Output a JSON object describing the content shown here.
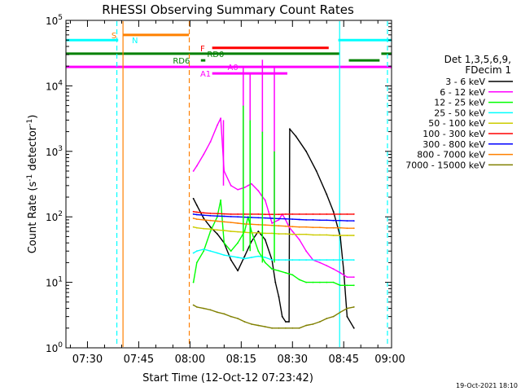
{
  "chart_data": {
    "type": "line",
    "title": "RHESSI Observing Summary Count Rates",
    "xlabel": "Start Time (12-Oct-12 07:23:42)",
    "ylabel_main": "Count Rate (s",
    "ylabel_sup": "-1",
    "ylabel_end": " detector",
    "ylabel_sup2": "-1",
    "ylabel_close": ")",
    "yscale": "log",
    "xlim": [
      23.7,
      119.0
    ],
    "ylim": [
      1,
      100000
    ],
    "x_ticks": [
      {
        "x": 30,
        "label": "07:30"
      },
      {
        "x": 45,
        "label": "07:45"
      },
      {
        "x": 60,
        "label": "08:00"
      },
      {
        "x": 75,
        "label": "08:15"
      },
      {
        "x": 90,
        "label": "08:30"
      },
      {
        "x": 105,
        "label": "08:45"
      },
      {
        "x": 120,
        "label": "09:00"
      }
    ],
    "y_ticks": [
      {
        "y": 1,
        "base": "10",
        "exp": "0"
      },
      {
        "y": 10,
        "base": "10",
        "exp": "1"
      },
      {
        "y": 100,
        "base": "10",
        "exp": "2"
      },
      {
        "y": 1000,
        "base": "10",
        "exp": "3"
      },
      {
        "y": 10000,
        "base": "10",
        "exp": "4"
      },
      {
        "y": 100000,
        "base": "10",
        "exp": "5"
      }
    ],
    "legend": {
      "header": "Det 1,3,5,6,9,",
      "subheader": "FDecim 1",
      "placement": "right"
    },
    "series": [
      {
        "name": "3 - 6 keV",
        "color": "#000000",
        "points": [
          [
            61,
            190
          ],
          [
            62,
            150
          ],
          [
            64,
            95
          ],
          [
            66,
            70
          ],
          [
            68,
            55
          ],
          [
            70,
            40
          ],
          [
            72,
            22
          ],
          [
            74,
            15
          ],
          [
            76,
            25
          ],
          [
            78,
            42
          ],
          [
            80,
            60
          ],
          [
            82,
            45
          ],
          [
            84,
            22
          ],
          [
            85,
            10
          ],
          [
            86,
            6
          ],
          [
            87,
            3
          ],
          [
            88,
            2.5
          ],
          [
            89,
            2.5
          ],
          [
            89.2,
            2200
          ],
          [
            91,
            1700
          ],
          [
            94,
            1000
          ],
          [
            97,
            500
          ],
          [
            100,
            220
          ],
          [
            102,
            120
          ],
          [
            104,
            50
          ],
          [
            105,
            15
          ],
          [
            106,
            3
          ],
          [
            108,
            2
          ]
        ]
      },
      {
        "name": "6 - 12 keV",
        "color": "#ff00ff",
        "points": [
          [
            61,
            500
          ],
          [
            62,
            600
          ],
          [
            64,
            900
          ],
          [
            66,
            1400
          ],
          [
            68,
            2500
          ],
          [
            69,
            3200
          ],
          [
            70,
            500
          ],
          [
            72,
            300
          ],
          [
            74,
            260
          ],
          [
            76,
            280
          ],
          [
            77,
            300
          ],
          [
            78,
            320
          ],
          [
            80,
            250
          ],
          [
            81,
            210
          ],
          [
            82,
            180
          ],
          [
            83,
            120
          ],
          [
            84,
            80
          ],
          [
            86,
            90
          ],
          [
            87,
            110
          ],
          [
            88,
            90
          ],
          [
            89,
            70
          ],
          [
            90,
            60
          ],
          [
            92,
            45
          ],
          [
            94,
            30
          ],
          [
            96,
            22
          ],
          [
            98,
            20
          ],
          [
            100,
            18
          ],
          [
            102,
            16
          ],
          [
            104,
            14
          ],
          [
            106,
            12
          ],
          [
            108,
            12
          ]
        ]
      },
      {
        "name": "12 - 25 keV",
        "color": "#00ff00",
        "points": [
          [
            61,
            10
          ],
          [
            62,
            20
          ],
          [
            64,
            30
          ],
          [
            66,
            60
          ],
          [
            68,
            100
          ],
          [
            69,
            180
          ],
          [
            70,
            40
          ],
          [
            72,
            30
          ],
          [
            74,
            40
          ],
          [
            76,
            60
          ],
          [
            77,
            100
          ],
          [
            78,
            60
          ],
          [
            80,
            30
          ],
          [
            82,
            20
          ],
          [
            84,
            16
          ],
          [
            86,
            15
          ],
          [
            88,
            14
          ],
          [
            90,
            13
          ],
          [
            92,
            11
          ],
          [
            94,
            10
          ],
          [
            96,
            10
          ],
          [
            98,
            10
          ],
          [
            100,
            10
          ],
          [
            102,
            10
          ],
          [
            104,
            9
          ],
          [
            106,
            9
          ],
          [
            108,
            9
          ]
        ]
      },
      {
        "name": "25 - 50 keV",
        "color": "#00ffff",
        "points": [
          [
            61,
            28
          ],
          [
            62,
            30
          ],
          [
            64,
            32
          ],
          [
            66,
            30
          ],
          [
            68,
            28
          ],
          [
            70,
            26
          ],
          [
            72,
            25
          ],
          [
            74,
            24
          ],
          [
            76,
            23
          ],
          [
            78,
            24
          ],
          [
            80,
            25
          ],
          [
            82,
            24
          ],
          [
            84,
            22
          ],
          [
            86,
            22
          ],
          [
            88,
            22
          ],
          [
            90,
            22
          ],
          [
            92,
            22
          ],
          [
            94,
            22
          ],
          [
            96,
            22
          ],
          [
            98,
            22
          ],
          [
            100,
            22
          ],
          [
            102,
            22
          ],
          [
            104,
            22
          ],
          [
            106,
            22
          ],
          [
            108,
            22
          ]
        ]
      },
      {
        "name": "50 - 100 keV",
        "color": "#cccc00",
        "points": [
          [
            61,
            70
          ],
          [
            62,
            68
          ],
          [
            64,
            66
          ],
          [
            66,
            65
          ],
          [
            68,
            63
          ],
          [
            70,
            62
          ],
          [
            72,
            60
          ],
          [
            74,
            59
          ],
          [
            76,
            58
          ],
          [
            78,
            57
          ],
          [
            80,
            57
          ],
          [
            82,
            56
          ],
          [
            84,
            56
          ],
          [
            86,
            55
          ],
          [
            88,
            55
          ],
          [
            90,
            54
          ],
          [
            92,
            54
          ],
          [
            94,
            54
          ],
          [
            96,
            53
          ],
          [
            98,
            53
          ],
          [
            100,
            53
          ],
          [
            102,
            52
          ],
          [
            104,
            52
          ],
          [
            106,
            52
          ],
          [
            108,
            52
          ]
        ]
      },
      {
        "name": "100 - 300 keV",
        "color": "#ff0000",
        "points": [
          [
            61,
            120
          ],
          [
            62,
            118
          ],
          [
            64,
            115
          ],
          [
            66,
            113
          ],
          [
            68,
            112
          ],
          [
            70,
            111
          ],
          [
            72,
            110
          ],
          [
            74,
            110
          ],
          [
            76,
            110
          ],
          [
            78,
            110
          ],
          [
            80,
            110
          ],
          [
            82,
            109
          ],
          [
            84,
            109
          ],
          [
            86,
            109
          ],
          [
            88,
            110
          ],
          [
            90,
            110
          ],
          [
            92,
            110
          ],
          [
            94,
            110
          ],
          [
            96,
            110
          ],
          [
            98,
            110
          ],
          [
            100,
            110
          ],
          [
            102,
            110
          ],
          [
            104,
            110
          ],
          [
            106,
            110
          ],
          [
            108,
            110
          ]
        ]
      },
      {
        "name": "300 - 800 keV",
        "color": "#0000ff",
        "points": [
          [
            61,
            110
          ],
          [
            62,
            108
          ],
          [
            64,
            106
          ],
          [
            66,
            104
          ],
          [
            68,
            103
          ],
          [
            70,
            102
          ],
          [
            72,
            101
          ],
          [
            74,
            100
          ],
          [
            76,
            99
          ],
          [
            78,
            98
          ],
          [
            80,
            97
          ],
          [
            82,
            96
          ],
          [
            84,
            95
          ],
          [
            86,
            94
          ],
          [
            88,
            93
          ],
          [
            90,
            92
          ],
          [
            92,
            91
          ],
          [
            94,
            90
          ],
          [
            96,
            90
          ],
          [
            98,
            89
          ],
          [
            100,
            89
          ],
          [
            102,
            88
          ],
          [
            104,
            88
          ],
          [
            106,
            87
          ],
          [
            108,
            87
          ]
        ]
      },
      {
        "name": "800 - 7000 keV",
        "color": "#ff8000",
        "points": [
          [
            61,
            95
          ],
          [
            62,
            92
          ],
          [
            64,
            90
          ],
          [
            66,
            88
          ],
          [
            68,
            86
          ],
          [
            70,
            84
          ],
          [
            72,
            82
          ],
          [
            74,
            80
          ],
          [
            76,
            78
          ],
          [
            78,
            77
          ],
          [
            80,
            76
          ],
          [
            82,
            75
          ],
          [
            84,
            74
          ],
          [
            86,
            73
          ],
          [
            88,
            72
          ],
          [
            90,
            71
          ],
          [
            92,
            70
          ],
          [
            94,
            70
          ],
          [
            96,
            69
          ],
          [
            98,
            69
          ],
          [
            100,
            68
          ],
          [
            102,
            68
          ],
          [
            104,
            68
          ],
          [
            106,
            67
          ],
          [
            108,
            67
          ]
        ]
      },
      {
        "name": "7000 - 15000 keV",
        "color": "#808000",
        "points": [
          [
            61,
            4.5
          ],
          [
            62,
            4.2
          ],
          [
            64,
            4
          ],
          [
            66,
            3.8
          ],
          [
            68,
            3.5
          ],
          [
            70,
            3.3
          ],
          [
            72,
            3
          ],
          [
            74,
            2.8
          ],
          [
            76,
            2.5
          ],
          [
            78,
            2.3
          ],
          [
            80,
            2.2
          ],
          [
            82,
            2.1
          ],
          [
            84,
            2
          ],
          [
            86,
            2
          ],
          [
            88,
            2
          ],
          [
            90,
            2
          ],
          [
            92,
            2
          ],
          [
            94,
            2.2
          ],
          [
            96,
            2.3
          ],
          [
            98,
            2.5
          ],
          [
            100,
            2.8
          ],
          [
            102,
            3
          ],
          [
            104,
            3.5
          ],
          [
            106,
            4
          ],
          [
            108,
            4.2
          ]
        ]
      }
    ],
    "spikes": [
      {
        "color": "#ff00ff",
        "x": 69.8,
        "y_from": 300,
        "y_to": 3000
      },
      {
        "color": "#ff00ff",
        "x": 75.6,
        "y_from": 300,
        "y_to": 20000
      },
      {
        "color": "#ff00ff",
        "x": 77.6,
        "y_from": 300,
        "y_to": 16000
      },
      {
        "color": "#ff00ff",
        "x": 81.2,
        "y_from": 200,
        "y_to": 25000
      },
      {
        "color": "#ff00ff",
        "x": 84.7,
        "y_from": 100,
        "y_to": 20000
      },
      {
        "color": "#00ff00",
        "x": 75.6,
        "y_from": 30,
        "y_to": 5000
      },
      {
        "color": "#00ff00",
        "x": 77.6,
        "y_from": 30,
        "y_to": 3000
      },
      {
        "color": "#00ff00",
        "x": 81.2,
        "y_from": 20,
        "y_to": 2000
      },
      {
        "color": "#00ff00",
        "x": 84.7,
        "y_from": 20,
        "y_to": 1000
      }
    ],
    "flag_bars": [
      {
        "label": "S",
        "color": "#ff8000",
        "y": 60000,
        "x0": 40.5,
        "x1": 59.7,
        "label_x": 37
      },
      {
        "label": "N",
        "color": "#00ffff",
        "y": 50000,
        "x0": 23.7,
        "x1": 39.0,
        "label_x": 43
      },
      {
        "label": "N",
        "color": "#00ffff",
        "y": 50000,
        "x0": 103.4,
        "x1": 119.0,
        "label_x": null
      },
      {
        "label": "F",
        "color": "#ff0000",
        "y": 38000,
        "x0": 66.5,
        "x1": 100.6,
        "label_x": 63
      },
      {
        "label": "RD0",
        "color": "#008000",
        "y": 31000,
        "x0": 23.7,
        "x1": 103.8,
        "label_x": 65
      },
      {
        "label": "RD6",
        "color": "#008000",
        "y": 24500,
        "x0": 63.2,
        "x1": 64.5,
        "label_x": 55
      },
      {
        "label": "",
        "color": "#008000",
        "y": 24500,
        "x0": 106.5,
        "x1": 115.5,
        "label_x": null
      },
      {
        "label": "",
        "color": "#008000",
        "y": 31000,
        "x0": 116.0,
        "x1": 119.0,
        "label_x": null
      },
      {
        "label": "A0",
        "color": "#ff00ff",
        "y": 19500,
        "x0": 23.7,
        "x1": 119.0,
        "label_x": 71
      },
      {
        "label": "A1",
        "color": "#ff00ff",
        "y": 15500,
        "x0": 66.5,
        "x1": 88.5,
        "label_x": 63
      }
    ],
    "vertical_markers": [
      {
        "color": "#ff8000",
        "x": 40.4,
        "style": "solid"
      },
      {
        "color": "#00ffff",
        "x": 40.4,
        "style": "none"
      },
      {
        "color": "#00ffff",
        "x": 38.6,
        "style": "dashed"
      },
      {
        "color": "#ff8000",
        "x": 59.8,
        "style": "dashed"
      },
      {
        "color": "#00ffff",
        "x": 103.8,
        "style": "solid"
      },
      {
        "color": "#00ffff",
        "x": 117.8,
        "style": "dashed"
      }
    ],
    "footer_date": "19-Oct-2021 18:10"
  }
}
